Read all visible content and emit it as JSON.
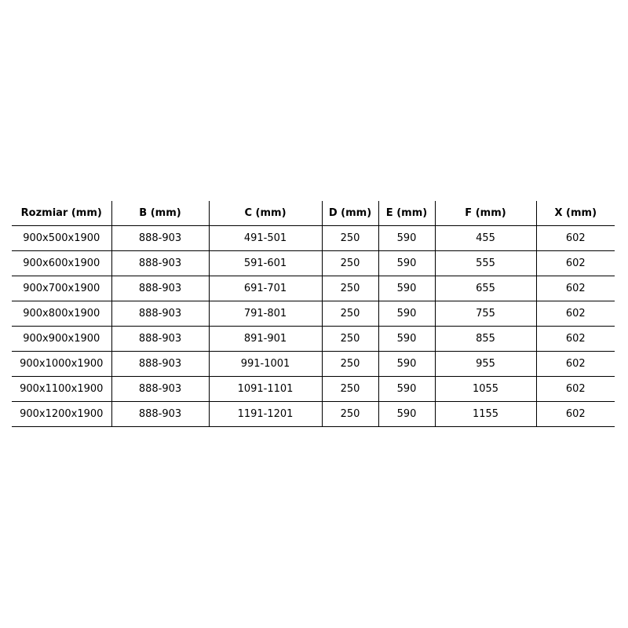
{
  "table": {
    "headers": [
      "Rozmiar (mm)",
      "B (mm)",
      "C (mm)",
      "D (mm)",
      "E (mm)",
      "F (mm)",
      "X (mm)"
    ],
    "rows": [
      [
        "900x500x1900",
        "888-903",
        "491-501",
        "250",
        "590",
        "455",
        "602"
      ],
      [
        "900x600x1900",
        "888-903",
        "591-601",
        "250",
        "590",
        "555",
        "602"
      ],
      [
        "900x700x1900",
        "888-903",
        "691-701",
        "250",
        "590",
        "655",
        "602"
      ],
      [
        "900x800x1900",
        "888-903",
        "791-801",
        "250",
        "590",
        "755",
        "602"
      ],
      [
        "900x900x1900",
        "888-903",
        "891-901",
        "250",
        "590",
        "855",
        "602"
      ],
      [
        "900x1000x1900",
        "888-903",
        "991-1001",
        "250",
        "590",
        "955",
        "602"
      ],
      [
        "900x1100x1900",
        "888-903",
        "1091-1101",
        "250",
        "590",
        "1055",
        "602"
      ],
      [
        "900x1200x1900",
        "888-903",
        "1191-1201",
        "250",
        "590",
        "1155",
        "602"
      ]
    ]
  }
}
